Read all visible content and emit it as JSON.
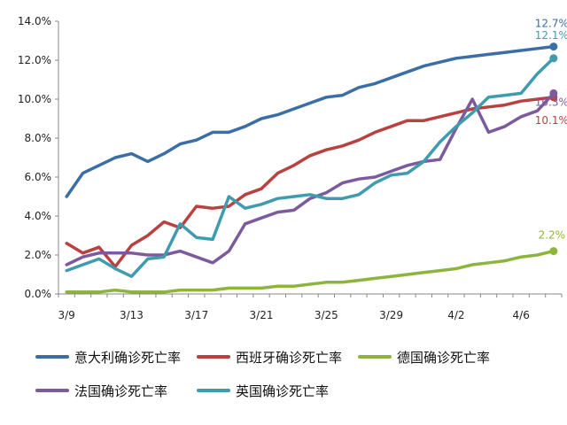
{
  "chart_data": {
    "type": "line",
    "x": [
      "3/9",
      "3/10",
      "3/11",
      "3/12",
      "3/13",
      "3/14",
      "3/15",
      "3/16",
      "3/17",
      "3/18",
      "3/19",
      "3/20",
      "3/21",
      "3/22",
      "3/23",
      "3/24",
      "3/25",
      "3/26",
      "3/27",
      "3/28",
      "3/29",
      "3/30",
      "3/31",
      "4/1",
      "4/2",
      "4/3",
      "4/4",
      "4/5",
      "4/6",
      "4/7",
      "4/8"
    ],
    "x_ticks": [
      "3/9",
      "3/13",
      "3/17",
      "3/21",
      "3/25",
      "3/29",
      "4/2",
      "4/6"
    ],
    "y_ticks": [
      "0.0%",
      "2.0%",
      "4.0%",
      "6.0%",
      "8.0%",
      "10.0%",
      "12.0%",
      "14.0%"
    ],
    "ylim": [
      0,
      14
    ],
    "title": "",
    "xlabel": "",
    "ylabel": "",
    "grid": false,
    "legend_position": "bottom",
    "series": [
      {
        "name": "意大利确诊死亡率",
        "color": "#3b6ea5",
        "end_label": "12.7%",
        "values": [
          5.0,
          6.2,
          6.6,
          7.0,
          7.2,
          6.8,
          7.2,
          7.7,
          7.9,
          8.3,
          8.3,
          8.6,
          9.0,
          9.2,
          9.5,
          9.8,
          10.1,
          10.2,
          10.6,
          10.8,
          11.1,
          11.4,
          11.7,
          11.9,
          12.1,
          12.2,
          12.3,
          12.4,
          12.5,
          12.6,
          12.7
        ]
      },
      {
        "name": "西班牙确诊死亡率",
        "color": "#b9413f",
        "end_label": "10.1%",
        "values": [
          2.6,
          2.1,
          2.4,
          1.4,
          2.5,
          3.0,
          3.7,
          3.4,
          4.5,
          4.4,
          4.5,
          5.1,
          5.4,
          6.2,
          6.6,
          7.1,
          7.4,
          7.6,
          7.9,
          8.3,
          8.6,
          8.9,
          8.9,
          9.1,
          9.3,
          9.5,
          9.6,
          9.7,
          9.9,
          10.0,
          10.1
        ]
      },
      {
        "name": "德国确诊死亡率",
        "color": "#8db53c",
        "end_label": "2.2%",
        "values": [
          0.1,
          0.1,
          0.1,
          0.2,
          0.1,
          0.1,
          0.1,
          0.2,
          0.2,
          0.2,
          0.3,
          0.3,
          0.3,
          0.4,
          0.4,
          0.5,
          0.6,
          0.6,
          0.7,
          0.8,
          0.9,
          1.0,
          1.1,
          1.2,
          1.3,
          1.5,
          1.6,
          1.7,
          1.9,
          2.0,
          2.2
        ]
      },
      {
        "name": "法国确诊死亡率",
        "color": "#7b5b9e",
        "end_label": "10.3%",
        "values": [
          1.5,
          1.9,
          2.1,
          2.1,
          2.1,
          2.0,
          2.0,
          2.2,
          1.9,
          1.6,
          2.2,
          3.6,
          3.9,
          4.2,
          4.3,
          4.9,
          5.2,
          5.7,
          5.9,
          6.0,
          6.3,
          6.6,
          6.8,
          6.9,
          8.5,
          10.0,
          8.3,
          8.6,
          9.1,
          9.4,
          10.3
        ]
      },
      {
        "name": "英国确诊死亡率",
        "color": "#3f9bae",
        "end_label": "12.1%",
        "values": [
          1.2,
          1.5,
          1.8,
          1.3,
          0.9,
          1.8,
          1.9,
          3.6,
          2.9,
          2.8,
          5.0,
          4.4,
          4.6,
          4.9,
          5.0,
          5.1,
          4.9,
          4.9,
          5.1,
          5.7,
          6.1,
          6.2,
          6.8,
          7.8,
          8.6,
          9.3,
          10.1,
          10.2,
          10.3,
          11.3,
          12.1
        ]
      }
    ]
  },
  "legend": {
    "row1": [
      "意大利确诊死亡率",
      "西班牙确诊死亡率",
      "德国确诊死亡率"
    ],
    "row2": [
      "法国确诊死亡率",
      "英国确诊死亡率"
    ]
  }
}
